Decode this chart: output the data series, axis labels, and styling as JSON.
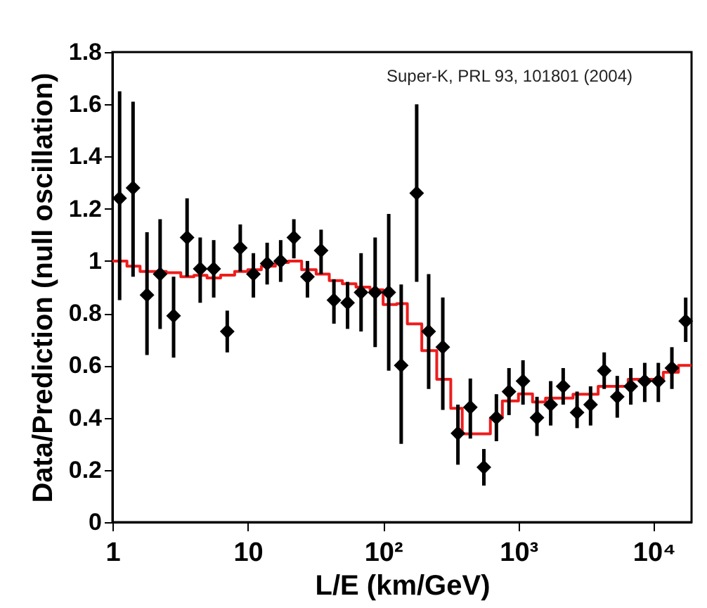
{
  "chart_data": {
    "type": "scatter",
    "xlabel": "L/E (km/GeV)",
    "ylabel": "Data/Prediction (null oscillation)",
    "annotations": [
      "Super-K, PRL 93, 101801 (2004)"
    ],
    "log": "x",
    "xlim": [
      1,
      19000
    ],
    "ylim": [
      0,
      1.8
    ],
    "xticks": [
      1,
      10,
      {
        "value": 100,
        "label": "10²"
      },
      {
        "value": 1000,
        "label": "10³"
      },
      {
        "value": 10000,
        "label": "10⁴"
      }
    ],
    "yticks": [
      0,
      0.2,
      0.4,
      0.6,
      0.8,
      1,
      1.2,
      1.4,
      1.6,
      1.8
    ],
    "grid": false,
    "series": [
      {
        "type": "step",
        "marker": "none",
        "color": "#ee1c1c",
        "x": [
          1,
          1.28,
          1.6,
          2.5,
          3.2,
          4,
          5,
          6.3,
          8,
          10,
          12.6,
          16,
          20,
          25,
          32,
          40,
          50,
          63,
          80,
          100,
          126,
          151,
          193,
          249,
          316,
          384,
          620,
          760,
          1000,
          1270,
          1585,
          2530,
          3880,
          6470,
          11750,
          15200,
          19000
        ],
        "values": [
          1.0,
          0.98,
          0.96,
          0.955,
          0.94,
          0.945,
          0.935,
          0.946,
          0.96,
          0.967,
          0.98,
          0.994,
          1.0,
          0.967,
          0.95,
          0.925,
          0.913,
          0.9,
          0.89,
          0.833,
          0.837,
          0.759,
          0.657,
          0.547,
          0.436,
          0.338,
          0.399,
          0.464,
          0.491,
          0.46,
          0.475,
          0.49,
          0.52,
          0.547,
          0.574,
          0.6,
          0.6
        ]
      },
      {
        "type": "scatter",
        "marker": "diamond",
        "color": "#000000",
        "x": [
          1.13,
          1.42,
          1.8,
          2.25,
          2.83,
          3.56,
          4.45,
          5.6,
          7.05,
          8.8,
          11,
          13.9,
          17.5,
          21.9,
          27.6,
          34.8,
          43.3,
          54.6,
          68.7,
          87.3,
          110,
          136,
          177,
          217,
          276,
          357,
          441,
          555,
          687,
          851,
          1080,
          1370,
          1730,
          2140,
          2710,
          3410,
          4300,
          5370,
          6760,
          8570,
          10800,
          13600,
          17200
        ],
        "values": [
          1.24,
          1.28,
          0.87,
          0.95,
          0.79,
          1.09,
          0.97,
          0.97,
          0.73,
          1.05,
          0.95,
          0.99,
          1.0,
          1.09,
          0.94,
          1.04,
          0.85,
          0.84,
          0.88,
          0.88,
          0.88,
          0.6,
          1.26,
          0.73,
          0.67,
          0.34,
          0.44,
          0.21,
          0.4,
          0.5,
          0.54,
          0.4,
          0.45,
          0.52,
          0.42,
          0.45,
          0.58,
          0.48,
          0.52,
          0.54,
          0.54,
          0.59,
          0.77
        ],
        "errors": [
          [
            0.85,
            1.65
          ],
          [
            0.94,
            1.61
          ],
          [
            0.64,
            1.11
          ],
          [
            0.74,
            1.16
          ],
          [
            0.63,
            0.94
          ],
          [
            0.94,
            1.24
          ],
          [
            0.84,
            1.09
          ],
          [
            0.86,
            1.08
          ],
          [
            0.65,
            0.81
          ],
          [
            0.96,
            1.14
          ],
          [
            0.86,
            1.03
          ],
          [
            0.91,
            1.07
          ],
          [
            0.92,
            1.08
          ],
          [
            1.01,
            1.16
          ],
          [
            0.86,
            1.0
          ],
          [
            0.95,
            1.12
          ],
          [
            0.76,
            0.93
          ],
          [
            0.74,
            0.92
          ],
          [
            0.73,
            1.03
          ],
          [
            0.67,
            1.09
          ],
          [
            0.58,
            1.18
          ],
          [
            0.3,
            0.91
          ],
          [
            0.92,
            1.6
          ],
          [
            0.51,
            0.95
          ],
          [
            0.43,
            0.86
          ],
          [
            0.22,
            0.45
          ],
          [
            0.32,
            0.55
          ],
          [
            0.14,
            0.28
          ],
          [
            0.31,
            0.49
          ],
          [
            0.41,
            0.59
          ],
          [
            0.45,
            0.62
          ],
          [
            0.33,
            0.48
          ],
          [
            0.37,
            0.54
          ],
          [
            0.45,
            0.59
          ],
          [
            0.36,
            0.5
          ],
          [
            0.37,
            0.52
          ],
          [
            0.51,
            0.65
          ],
          [
            0.4,
            0.56
          ],
          [
            0.45,
            0.59
          ],
          [
            0.46,
            0.61
          ],
          [
            0.46,
            0.61
          ],
          [
            0.51,
            0.67
          ],
          [
            0.69,
            0.86
          ]
        ]
      }
    ]
  }
}
